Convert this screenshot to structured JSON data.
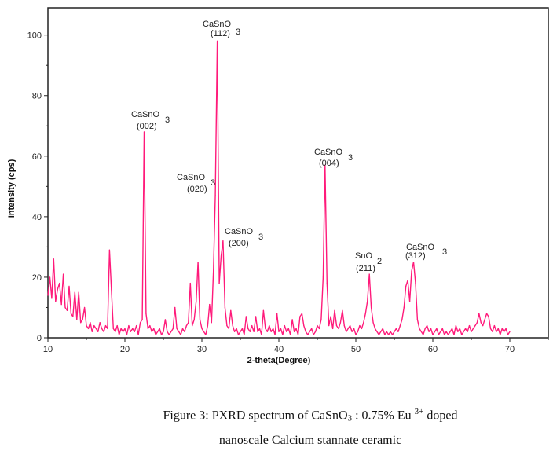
{
  "chart_data": {
    "type": "line",
    "xlabel": "2-theta(Degree)",
    "ylabel": "Intensity (cps)",
    "xlim": [
      10,
      75
    ],
    "ylim": [
      0,
      109
    ],
    "xticks": [
      10,
      20,
      30,
      40,
      50,
      60,
      70
    ],
    "yticks": [
      0,
      20,
      40,
      60,
      80,
      100
    ],
    "grid": false,
    "line_color": "#ff1a7a",
    "series": [
      {
        "x": [
          10,
          10.25,
          10.5,
          10.75,
          11,
          11.25,
          11.5,
          11.75,
          12,
          12.25,
          12.5,
          12.75,
          13,
          13.25,
          13.5,
          13.75,
          14,
          14.25,
          14.5,
          14.75,
          15,
          15.25,
          15.5,
          15.75,
          16,
          16.25,
          16.5,
          16.75,
          17,
          17.25,
          17.5,
          17.75,
          18,
          18.25,
          18.5,
          18.75,
          19,
          19.25,
          19.5,
          19.75,
          20,
          20.25,
          20.5,
          20.75,
          21,
          21.25,
          21.5,
          21.75,
          22,
          22.25,
          22.5,
          22.75,
          23,
          23.25,
          23.5,
          23.75,
          24,
          24.25,
          24.5,
          24.75,
          25,
          25.25,
          25.5,
          25.75,
          26,
          26.25,
          26.5,
          26.75,
          27,
          27.25,
          27.5,
          27.75,
          28,
          28.25,
          28.5,
          28.75,
          29,
          29.25,
          29.5,
          29.75,
          30,
          30.25,
          30.5,
          30.75,
          31,
          31.25,
          31.5,
          31.75,
          32,
          32.25,
          32.5,
          32.75,
          33,
          33.25,
          33.5,
          33.75,
          34,
          34.25,
          34.5,
          34.75,
          35,
          35.25,
          35.5,
          35.75,
          36,
          36.25,
          36.5,
          36.75,
          37,
          37.25,
          37.5,
          37.75,
          38,
          38.25,
          38.5,
          38.75,
          39,
          39.25,
          39.5,
          39.75,
          40,
          40.25,
          40.5,
          40.75,
          41,
          41.25,
          41.5,
          41.75,
          42,
          42.25,
          42.5,
          42.75,
          43,
          43.25,
          43.5,
          43.75,
          44,
          44.25,
          44.5,
          44.75,
          45,
          45.25,
          45.5,
          45.75,
          46,
          46.25,
          46.5,
          46.75,
          47,
          47.25,
          47.5,
          47.75,
          48,
          48.25,
          48.5,
          48.75,
          49,
          49.25,
          49.5,
          49.75,
          50,
          50.25,
          50.5,
          50.75,
          51,
          51.25,
          51.5,
          51.75,
          52,
          52.25,
          52.5,
          52.75,
          53,
          53.25,
          53.5,
          53.75,
          54,
          54.25,
          54.5,
          54.75,
          55,
          55.25,
          55.5,
          55.75,
          56,
          56.25,
          56.5,
          56.75,
          57,
          57.25,
          57.5,
          57.75,
          58,
          58.25,
          58.5,
          58.75,
          59,
          59.25,
          59.5,
          59.75,
          60,
          60.25,
          60.5,
          60.75,
          61,
          61.25,
          61.5,
          61.75,
          62,
          62.25,
          62.5,
          62.75,
          63,
          63.25,
          63.5,
          63.75,
          64,
          64.25,
          64.5,
          64.75,
          65,
          65.25,
          65.5,
          65.75,
          66,
          66.25,
          66.5,
          66.75,
          67,
          67.25,
          67.5,
          67.75,
          68,
          68.25,
          68.5,
          68.75,
          69,
          69.25,
          69.5,
          69.75,
          70
        ],
        "y": [
          14,
          20,
          13,
          26,
          12,
          16,
          18,
          11,
          21,
          10,
          9,
          17,
          8,
          7,
          15,
          6,
          15,
          5,
          6,
          10,
          4,
          3,
          5,
          2,
          4,
          3,
          2,
          5,
          3,
          2,
          4,
          3,
          29,
          16,
          3,
          2,
          4,
          1,
          3,
          2,
          3,
          1,
          4,
          2,
          3,
          2,
          4,
          1,
          5,
          6,
          68,
          8,
          3,
          4,
          2,
          3,
          1,
          2,
          3,
          1,
          2,
          6,
          2,
          1,
          2,
          3,
          10,
          3,
          2,
          1,
          3,
          2,
          4,
          5,
          18,
          4,
          6,
          12,
          25,
          6,
          3,
          2,
          1,
          4,
          11,
          5,
          22,
          47,
          98,
          18,
          27,
          32,
          10,
          4,
          3,
          9,
          4,
          2,
          3,
          1,
          2,
          3,
          1,
          7,
          3,
          2,
          4,
          2,
          7,
          2,
          3,
          1,
          9,
          3,
          2,
          4,
          2,
          3,
          1,
          8,
          2,
          3,
          1,
          4,
          2,
          3,
          1,
          6,
          2,
          3,
          1,
          7,
          8,
          4,
          2,
          1,
          2,
          3,
          1,
          2,
          4,
          3,
          6,
          20,
          57,
          18,
          4,
          7,
          3,
          9,
          4,
          3,
          5,
          9,
          4,
          2,
          3,
          4,
          2,
          3,
          1,
          2,
          4,
          3,
          5,
          8,
          12,
          21,
          10,
          5,
          3,
          2,
          1,
          2,
          3,
          1,
          2,
          1,
          2,
          1,
          2,
          3,
          2,
          4,
          6,
          10,
          17,
          19,
          12,
          22,
          25,
          18,
          6,
          3,
          2,
          1,
          3,
          4,
          2,
          3,
          1,
          2,
          3,
          1,
          2,
          3,
          1,
          2,
          1,
          2,
          3,
          1,
          4,
          2,
          3,
          1,
          2,
          3,
          2,
          4,
          2,
          3,
          4,
          5,
          8,
          5,
          4,
          6,
          8,
          7,
          3,
          2,
          4,
          2,
          3,
          1,
          3,
          2,
          3,
          1,
          2
        ]
      }
    ],
    "annotations": [
      {
        "compound": "CaSnO",
        "sub": "3",
        "hkl": "(112)",
        "peak_x": 32.0
      },
      {
        "compound": "CaSnO",
        "sub": "3",
        "hkl": "(002)",
        "peak_x": 22.5
      },
      {
        "compound": "CaSnO",
        "sub": "3",
        "hkl": "(020)",
        "peak_x": 31.75
      },
      {
        "compound": "CaSnO",
        "sub": "3",
        "hkl": "(200)",
        "peak_x": 32.75
      },
      {
        "compound": "CaSnO",
        "sub": "3",
        "hkl": "(004)",
        "peak_x": 46.0
      },
      {
        "compound": "SnO",
        "sub": "2",
        "hkl": "(211)",
        "peak_x": 51.75
      },
      {
        "compound": "CaSnO",
        "sub": "3",
        "hkl": "(312)",
        "peak_x": 57.5
      }
    ]
  },
  "caption": {
    "line1_prefix": "Figure 3: PXRD spectrum of CaSnO",
    "line1_sub": "3",
    "line1_mid": " : 0.75% Eu ",
    "line1_sup": "3+",
    "line1_suffix": " doped",
    "line2": "nanoscale Calcium stannate ceramic"
  }
}
